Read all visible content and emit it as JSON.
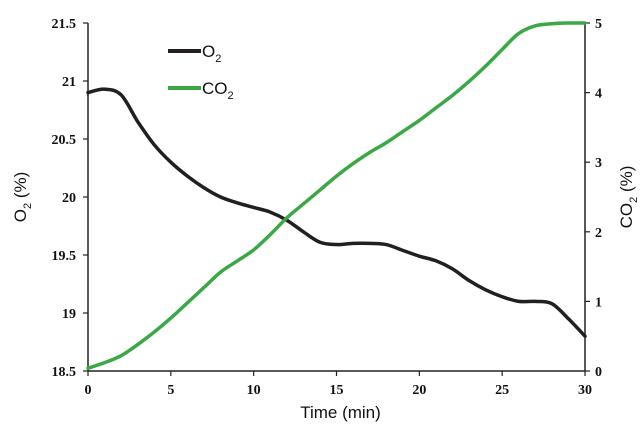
{
  "chart_data": {
    "type": "line",
    "xlabel": "Time (min)",
    "ylabel_left": {
      "base": "O",
      "sub": "2",
      "suffix": " (%)"
    },
    "ylabel_right": {
      "base": "CO",
      "sub": "2",
      "suffix": " (%)"
    },
    "xlim": [
      0,
      30
    ],
    "ylim_left": [
      18.5,
      21.5
    ],
    "ylim_right": [
      0,
      5
    ],
    "x_ticks": [
      0,
      5,
      10,
      15,
      20,
      25,
      30
    ],
    "y_left_ticks": [
      "18.5",
      "19",
      "19.5",
      "20",
      "20.5",
      "21",
      "21.5"
    ],
    "y_right_ticks": [
      "0",
      "1",
      "2",
      "3",
      "4",
      "5"
    ],
    "grid": false,
    "legend_position": "top-left",
    "series": [
      {
        "name": {
          "base": "O",
          "sub": "2"
        },
        "axis": "left",
        "color": "#231f20",
        "x": [
          0,
          1,
          2,
          3,
          4,
          5,
          6,
          7,
          8,
          9,
          10,
          11,
          12,
          13,
          14,
          15,
          16,
          17,
          18,
          19,
          20,
          21,
          22,
          23,
          24,
          25,
          26,
          27,
          28,
          29,
          30
        ],
        "y": [
          20.9,
          20.93,
          20.88,
          20.65,
          20.45,
          20.3,
          20.18,
          20.08,
          20.0,
          19.95,
          19.91,
          19.87,
          19.8,
          19.7,
          19.61,
          19.59,
          19.6,
          19.6,
          19.59,
          19.54,
          19.49,
          19.45,
          19.38,
          19.28,
          19.2,
          19.14,
          19.1,
          19.1,
          19.08,
          18.95,
          18.8
        ]
      },
      {
        "name": {
          "base": "CO",
          "sub": "2"
        },
        "axis": "right",
        "color": "#3aa844",
        "x": [
          0,
          1,
          2,
          3,
          4,
          5,
          6,
          7,
          8,
          9,
          10,
          11,
          12,
          13,
          14,
          15,
          16,
          17,
          18,
          19,
          20,
          21,
          22,
          23,
          24,
          25,
          26,
          27,
          28,
          29,
          30
        ],
        "y": [
          0.04,
          0.12,
          0.22,
          0.38,
          0.56,
          0.76,
          0.98,
          1.2,
          1.42,
          1.58,
          1.74,
          1.96,
          2.2,
          2.4,
          2.6,
          2.8,
          2.98,
          3.14,
          3.28,
          3.44,
          3.6,
          3.78,
          3.96,
          4.16,
          4.38,
          4.62,
          4.85,
          4.96,
          4.99,
          5.0,
          5.0
        ]
      }
    ]
  }
}
